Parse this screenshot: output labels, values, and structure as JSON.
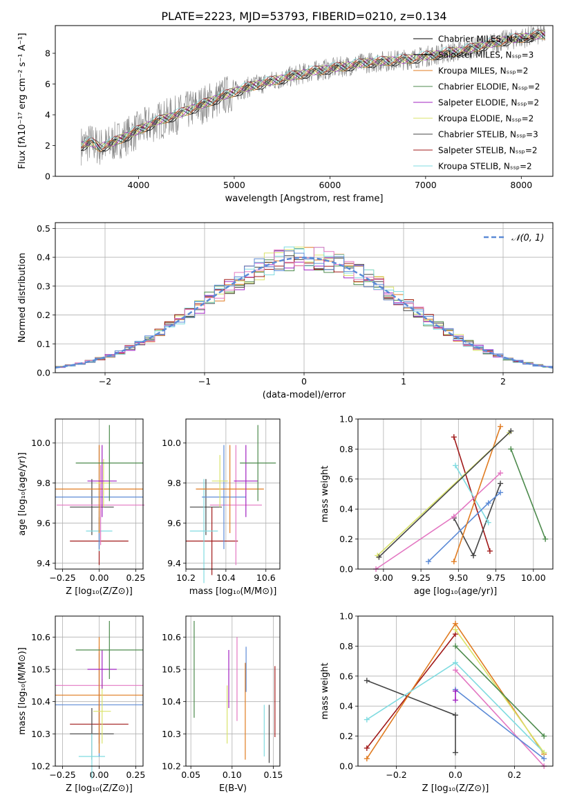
{
  "figure_title": "PLATE=2223, MJD=53793, FIBERID=0210, z=0.134",
  "chart_data": [
    {
      "id": "spectrum",
      "type": "line",
      "xlabel": "wavelength [Angstrom, rest frame]",
      "ylabel": "Flux [fλ10⁻¹⁷ erg cm⁻² s⁻¹ A⁻¹]",
      "xlim": [
        3130,
        8330
      ],
      "ylim": [
        0,
        9.8
      ],
      "xticks": [
        4000,
        5000,
        6000,
        7000,
        8000
      ],
      "yticks": [
        0,
        2,
        4,
        6,
        8
      ],
      "grid": false,
      "legend_position": "top-right",
      "series": [
        {
          "name": "Chabrier MILES, Nₛₛₚ=3",
          "color": "#000000"
        },
        {
          "name": "Salpeter MILES, Nₛₛₚ=3",
          "color": "#000000"
        },
        {
          "name": "Kroupa MILES, Nₛₛₚ=2",
          "color": "#e07b20"
        },
        {
          "name": "Chabrier ELODIE, Nₛₛₚ=2",
          "color": "#4c8a4c"
        },
        {
          "name": "Salpeter ELODIE, Nₛₛₚ=2",
          "color": "#a020c0"
        },
        {
          "name": "Kroupa ELODIE, Nₛₛₚ=2",
          "color": "#d9e36a"
        },
        {
          "name": "Chabrier STELIB, Nₛₛₚ=3",
          "color": "#444444"
        },
        {
          "name": "Salpeter STELIB, Nₛₛₚ=2",
          "color": "#a01818"
        },
        {
          "name": "Kroupa STELIB, Nₛₛₚ=2",
          "color": "#7fdbe0"
        }
      ],
      "data_trend": {
        "x": [
          3400,
          3500,
          3600,
          3700,
          3800,
          3900,
          4000,
          4200,
          4400,
          4600,
          4800,
          5000,
          5200,
          5400,
          5600,
          5800,
          6000,
          6200,
          6400,
          6600,
          6800,
          7000,
          7200,
          7400,
          7600,
          7800,
          8000,
          8200
        ],
        "y": [
          2.0,
          2.2,
          1.9,
          2.1,
          2.4,
          2.7,
          3.0,
          3.6,
          4.0,
          4.5,
          5.0,
          5.5,
          5.9,
          6.2,
          6.5,
          6.8,
          7.0,
          7.2,
          7.4,
          7.5,
          7.6,
          7.8,
          8.0,
          8.2,
          8.5,
          8.8,
          9.0,
          9.2
        ]
      }
    },
    {
      "id": "residuals",
      "type": "line",
      "xlabel": "(data-model)/error",
      "ylabel": "Normed distribution",
      "xlim": [
        -2.5,
        2.5
      ],
      "ylim": [
        0,
        0.52
      ],
      "xticks": [
        -2,
        -1,
        0,
        1,
        2
      ],
      "yticks": [
        0.0,
        0.1,
        0.2,
        0.3,
        0.4,
        0.5
      ],
      "grid": true,
      "legend_position": "top-right",
      "legend": "𝒩(0, 1)",
      "curve": "normal(0,1) density"
    },
    {
      "id": "age-vs-Z",
      "type": "scatter",
      "xlabel": "Z [log₁₀(Z/Z⊙)]",
      "ylabel": "age  [log₁₀(age/yr)]",
      "xlim": [
        -0.3,
        0.3
      ],
      "ylim": [
        9.37,
        10.12
      ],
      "xticks": [
        -0.25,
        0.0,
        0.25
      ],
      "yticks": [
        9.4,
        9.6,
        9.8,
        10.0
      ],
      "grid": true,
      "points": [
        {
          "x": 0.0,
          "y": 9.51,
          "xerr": 0.2,
          "yerr": 0.12,
          "color": "#a01818"
        },
        {
          "x": -0.05,
          "y": 9.68,
          "xerr": 0.15,
          "yerr": 0.14,
          "color": "#444444"
        },
        {
          "x": 0.0,
          "y": 9.56,
          "xerr": 0.09,
          "yerr": 0.1,
          "color": "#7fdbe0"
        },
        {
          "x": 0.01,
          "y": 9.69,
          "xerr": 0.3,
          "yerr": 0.2,
          "color": "#e377c2"
        },
        {
          "x": 0.0,
          "y": 9.73,
          "xerr": 0.3,
          "yerr": 0.26,
          "color": "#5b8ad6"
        },
        {
          "x": 0.0,
          "y": 9.77,
          "xerr": 0.3,
          "yerr": 0.22,
          "color": "#e07b20"
        },
        {
          "x": 0.03,
          "y": 9.8,
          "xerr": 0.05,
          "yerr": 0.12,
          "color": "#d9e36a"
        },
        {
          "x": 0.02,
          "y": 9.81,
          "xerr": 0.1,
          "yerr": 0.18,
          "color": "#a020c0"
        },
        {
          "x": 0.07,
          "y": 9.9,
          "xerr": 0.23,
          "yerr": 0.19,
          "color": "#4c8a4c"
        }
      ]
    },
    {
      "id": "age-vs-mass",
      "type": "scatter",
      "xlabel": "mass [log₁₀(M/M⊙)]",
      "ylabel": "",
      "xlim": [
        10.2,
        10.67
      ],
      "ylim": [
        9.37,
        10.12
      ],
      "xticks": [
        10.2,
        10.4,
        10.6
      ],
      "yticks": [
        9.4,
        9.6,
        9.8,
        10.0
      ],
      "grid": true,
      "points": [
        {
          "x": 10.33,
          "y": 9.51,
          "xerr": 0.13,
          "yerr": 0.17,
          "color": "#a01818"
        },
        {
          "x": 10.3,
          "y": 9.68,
          "xerr": 0.08,
          "yerr": 0.14,
          "color": "#444444"
        },
        {
          "x": 10.29,
          "y": 9.56,
          "xerr": 0.07,
          "yerr": 0.26,
          "color": "#7fdbe0"
        },
        {
          "x": 10.45,
          "y": 9.69,
          "xerr": 0.13,
          "yerr": 0.3,
          "color": "#e377c2"
        },
        {
          "x": 10.39,
          "y": 9.73,
          "xerr": 0.11,
          "yerr": 0.26,
          "color": "#5b8ad6"
        },
        {
          "x": 10.42,
          "y": 9.77,
          "xerr": 0.17,
          "yerr": 0.22,
          "color": "#e07b20"
        },
        {
          "x": 10.37,
          "y": 9.81,
          "xerr": 0.04,
          "yerr": 0.13,
          "color": "#d9e36a"
        },
        {
          "x": 10.5,
          "y": 9.81,
          "xerr": 0.06,
          "yerr": 0.18,
          "color": "#a020c0"
        },
        {
          "x": 10.56,
          "y": 9.9,
          "xerr": 0.09,
          "yerr": 0.19,
          "color": "#4c8a4c"
        }
      ]
    },
    {
      "id": "weight-vs-age",
      "type": "line",
      "xlabel": "age  [log₁₀(age/yr)]",
      "ylabel": "mass weight",
      "xlim": [
        8.83,
        10.13
      ],
      "ylim": [
        0,
        1.0
      ],
      "xticks": [
        9.0,
        9.25,
        9.5,
        9.75,
        10.0
      ],
      "yticks": [
        0.0,
        0.2,
        0.4,
        0.6,
        0.8,
        1.0
      ],
      "grid": true,
      "series": [
        {
          "color": "#a01818",
          "x": [
            9.47,
            9.71
          ],
          "y": [
            0.88,
            0.12
          ]
        },
        {
          "color": "#444444",
          "x": [
            9.47,
            9.6,
            9.78
          ],
          "y": [
            0.34,
            0.09,
            0.57
          ]
        },
        {
          "color": "#7fdbe0",
          "x": [
            9.48,
            9.7
          ],
          "y": [
            0.69,
            0.31
          ]
        },
        {
          "color": "#e377c2",
          "x": [
            8.95,
            9.47,
            9.78
          ],
          "y": [
            0.0,
            0.35,
            0.64
          ]
        },
        {
          "color": "#5b8ad6",
          "x": [
            9.3,
            9.7,
            9.78
          ],
          "y": [
            0.05,
            0.44,
            0.51
          ]
        },
        {
          "color": "#e07b20",
          "x": [
            9.47,
            9.78
          ],
          "y": [
            0.05,
            0.95
          ]
        },
        {
          "color": "#d9e36a",
          "x": [
            8.96,
            9.84
          ],
          "y": [
            0.09,
            0.91
          ]
        },
        {
          "color": "#444444",
          "x": [
            8.97,
            9.85
          ],
          "y": [
            0.08,
            0.92
          ]
        },
        {
          "color": "#4c8a4c",
          "x": [
            9.85,
            10.08
          ],
          "y": [
            0.8,
            0.2
          ]
        }
      ]
    },
    {
      "id": "mass-vs-Z",
      "type": "scatter",
      "xlabel": "Z [log₁₀(Z/Z⊙)]",
      "ylabel": "mass [log₁₀(M/M⊙)]",
      "xlim": [
        -0.3,
        0.3
      ],
      "ylim": [
        10.2,
        10.665
      ],
      "xticks": [
        -0.25,
        0.0,
        0.25
      ],
      "yticks": [
        10.2,
        10.3,
        10.4,
        10.5,
        10.6
      ],
      "grid": true,
      "points": [
        {
          "x": 0.0,
          "y": 10.33,
          "xerr": 0.2,
          "yerr": 0.06,
          "color": "#a01818"
        },
        {
          "x": -0.05,
          "y": 10.3,
          "xerr": 0.15,
          "yerr": 0.08,
          "color": "#444444"
        },
        {
          "x": -0.05,
          "y": 10.23,
          "xerr": 0.09,
          "yerr": 0.07,
          "color": "#7fdbe0"
        },
        {
          "x": 0.0,
          "y": 10.45,
          "xerr": 0.3,
          "yerr": 0.12,
          "color": "#e377c2"
        },
        {
          "x": 0.0,
          "y": 10.39,
          "xerr": 0.3,
          "yerr": 0.16,
          "color": "#5b8ad6"
        },
        {
          "x": 0.0,
          "y": 10.42,
          "xerr": 0.3,
          "yerr": 0.18,
          "color": "#e07b20"
        },
        {
          "x": 0.02,
          "y": 10.37,
          "xerr": 0.06,
          "yerr": 0.1,
          "color": "#d9e36a"
        },
        {
          "x": 0.02,
          "y": 10.5,
          "xerr": 0.1,
          "yerr": 0.06,
          "color": "#a020c0"
        },
        {
          "x": 0.07,
          "y": 10.56,
          "xerr": 0.23,
          "yerr": 0.09,
          "color": "#4c8a4c"
        }
      ]
    },
    {
      "id": "mass-vs-EBV",
      "type": "scatter",
      "xlabel": "E(B-V)",
      "ylabel": "",
      "xlim": [
        0.044,
        0.158
      ],
      "ylim": [
        10.2,
        10.665
      ],
      "xticks": [
        0.05,
        0.1,
        0.15
      ],
      "yticks": [
        10.2,
        10.3,
        10.4,
        10.5,
        10.6
      ],
      "grid": true,
      "points": [
        {
          "x": 0.054,
          "y": 10.5,
          "yerr": 0.15,
          "color": "#4c8a4c"
        },
        {
          "x": 0.094,
          "y": 10.36,
          "yerr": 0.09,
          "color": "#d9e36a"
        },
        {
          "x": 0.096,
          "y": 10.47,
          "yerr": 0.09,
          "color": "#a020c0"
        },
        {
          "x": 0.106,
          "y": 10.47,
          "yerr": 0.13,
          "color": "#e377c2"
        },
        {
          "x": 0.116,
          "y": 10.37,
          "yerr": 0.15,
          "color": "#e07b20"
        },
        {
          "x": 0.117,
          "y": 10.5,
          "yerr": 0.07,
          "color": "#5b8ad6"
        },
        {
          "x": 0.139,
          "y": 10.31,
          "yerr": 0.08,
          "color": "#7fdbe0"
        },
        {
          "x": 0.145,
          "y": 10.3,
          "yerr": 0.09,
          "color": "#444444"
        },
        {
          "x": 0.152,
          "y": 10.4,
          "yerr": 0.11,
          "color": "#a01818"
        }
      ]
    },
    {
      "id": "weight-vs-Z",
      "type": "line",
      "xlabel": "Z [log₁₀(Z/Z⊙)]",
      "ylabel": "mass weight",
      "xlim": [
        -0.33,
        0.33
      ],
      "ylim": [
        0,
        1.0
      ],
      "xticks": [
        -0.2,
        0.0,
        0.2
      ],
      "yticks": [
        0.0,
        0.2,
        0.4,
        0.6,
        0.8,
        1.0
      ],
      "grid": true,
      "series": [
        {
          "color": "#444444",
          "x": [
            -0.3,
            0.0,
            0.0
          ],
          "y": [
            0.57,
            0.34,
            0.09
          ]
        },
        {
          "color": "#a01818",
          "x": [
            -0.3,
            0.0
          ],
          "y": [
            0.12,
            0.88
          ]
        },
        {
          "color": "#e07b20",
          "x": [
            -0.3,
            0.0,
            0.3
          ],
          "y": [
            0.05,
            0.95,
            0.08
          ]
        },
        {
          "color": "#7fdbe0",
          "x": [
            -0.3,
            0.0,
            0.3
          ],
          "y": [
            0.31,
            0.69,
            0.09
          ]
        },
        {
          "color": "#d9e36a",
          "x": [
            0.0,
            0.3
          ],
          "y": [
            0.91,
            0.09
          ]
        },
        {
          "color": "#4c8a4c",
          "x": [
            0.0,
            0.3
          ],
          "y": [
            0.8,
            0.2
          ]
        },
        {
          "color": "#e377c2",
          "x": [
            0.0,
            0.3
          ],
          "y": [
            0.64,
            0.0
          ]
        },
        {
          "color": "#5b8ad6",
          "x": [
            0.0,
            0.3
          ],
          "y": [
            0.51,
            0.05
          ]
        },
        {
          "color": "#a020c0",
          "x": [
            0.0,
            0.0
          ],
          "y": [
            0.44,
            0.5
          ]
        }
      ]
    }
  ]
}
